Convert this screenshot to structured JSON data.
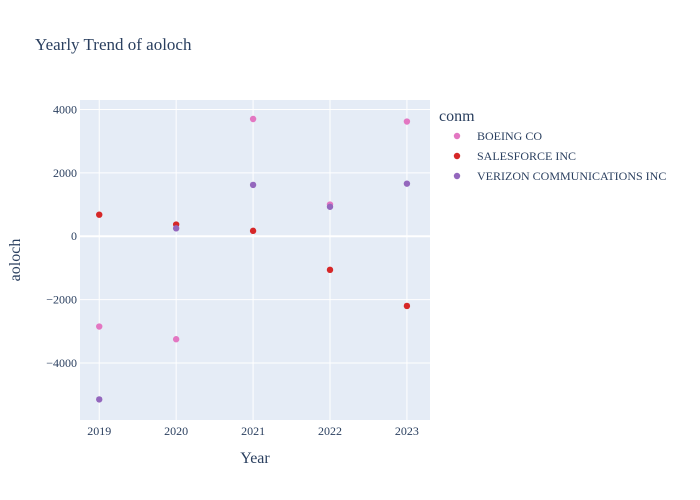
{
  "chart_data": {
    "type": "scatter",
    "title": "Yearly Trend of aoloch",
    "xlabel": "Year",
    "ylabel": "aoloch",
    "x": [
      2019,
      2020,
      2021,
      2022,
      2023
    ],
    "x_ticks": [
      "2019",
      "2020",
      "2021",
      "2022",
      "2023"
    ],
    "y_ticks": [
      4000,
      2000,
      0,
      -2000,
      -4000
    ],
    "y_tick_labels": [
      "4000",
      "2000",
      "0",
      "−2000",
      "−4000"
    ],
    "xlim": [
      2018.75,
      2023.3
    ],
    "ylim": [
      -5800,
      4300
    ],
    "grid": true,
    "legend_title": "conm",
    "legend_position": "right",
    "series": [
      {
        "name": "BOEING CO",
        "color": "#e377c2",
        "values": [
          -2850,
          -3250,
          3700,
          1000,
          3620
        ]
      },
      {
        "name": "SALESFORCE INC",
        "color": "#d62728",
        "values": [
          680,
          370,
          170,
          -1060,
          -2200
        ]
      },
      {
        "name": "VERIZON COMMUNICATIONS INC",
        "color": "#9467bd",
        "values": [
          -5150,
          250,
          1620,
          930,
          1660
        ]
      }
    ]
  }
}
